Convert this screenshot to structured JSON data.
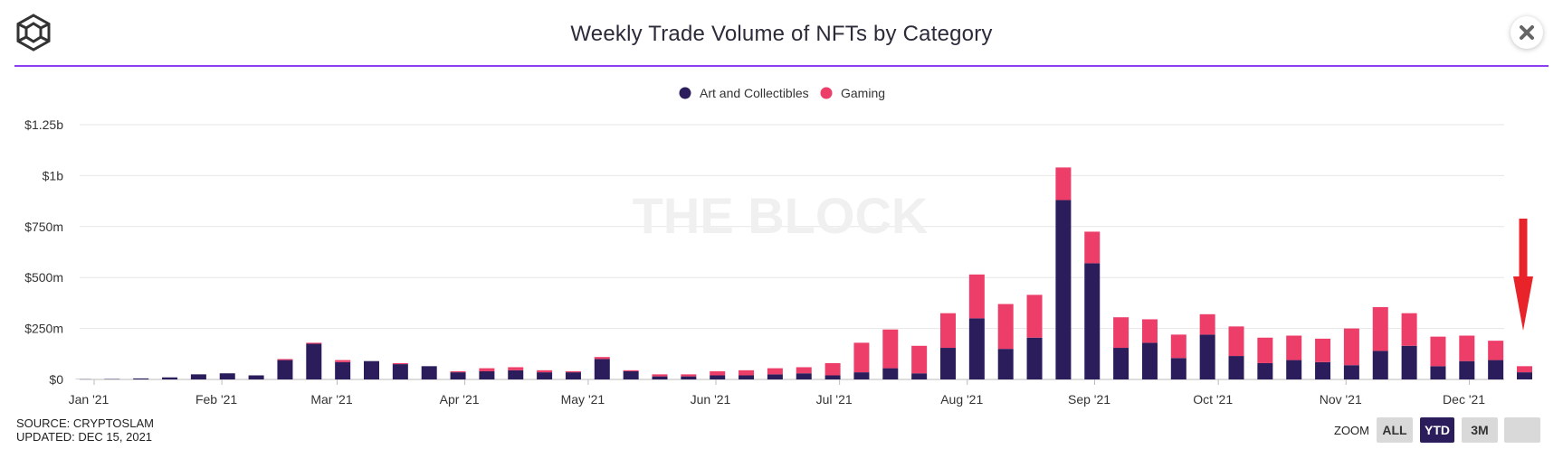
{
  "header": {
    "title": "Weekly Trade Volume of NFTs by Category",
    "logo_icon": "cube-logo-icon",
    "close_icon": "close-icon",
    "accent_color": "#8a3ff0"
  },
  "watermark": "THE BLOCK",
  "footer": {
    "source": "SOURCE: CRYPTOSLAM",
    "updated": "UPDATED: DEC 15, 2021"
  },
  "zoom": {
    "label": "ZOOM",
    "buttons": [
      "ALL",
      "YTD",
      "3M",
      ""
    ],
    "selected": "YTD"
  },
  "annotation": {
    "arrow_color": "#e8232a",
    "points_to": "last week"
  },
  "chart_data": {
    "type": "bar",
    "stacked": true,
    "legend_position": "top-center",
    "ylim": [
      0,
      1250
    ],
    "y_unit": "millions USD",
    "y_ticks": [
      {
        "value": 0,
        "label": "$0"
      },
      {
        "value": 250,
        "label": "$250m"
      },
      {
        "value": 500,
        "label": "$500m"
      },
      {
        "value": 750,
        "label": "$750m"
      },
      {
        "value": 1000,
        "label": "$1b"
      },
      {
        "value": 1250,
        "label": "$1.25b"
      }
    ],
    "x_ticks": [
      {
        "index": 0,
        "label": "Jan '21"
      },
      {
        "index": 4.43,
        "label": "Feb '21"
      },
      {
        "index": 8.43,
        "label": "Mar '21"
      },
      {
        "index": 12.86,
        "label": "Apr '21"
      },
      {
        "index": 17.14,
        "label": "May '21"
      },
      {
        "index": 21.57,
        "label": "Jun '21"
      },
      {
        "index": 25.86,
        "label": "Jul '21"
      },
      {
        "index": 30.29,
        "label": "Aug '21"
      },
      {
        "index": 34.71,
        "label": "Sep '21"
      },
      {
        "index": 39.0,
        "label": "Oct '21"
      },
      {
        "index": 43.43,
        "label": "Nov '21"
      },
      {
        "index": 47.71,
        "label": "Dec '21"
      }
    ],
    "grid": true,
    "series": [
      {
        "name": "Art and Collectibles",
        "color": "#2b1d5c",
        "values": [
          1,
          2,
          5,
          10,
          25,
          30,
          20,
          95,
          175,
          85,
          90,
          75,
          65,
          35,
          40,
          45,
          35,
          35,
          100,
          40,
          15,
          15,
          20,
          20,
          25,
          30,
          20,
          35,
          55,
          30,
          155,
          300,
          150,
          205,
          880,
          570,
          155,
          180,
          105,
          220,
          115,
          80,
          95,
          85,
          70,
          140,
          165,
          65,
          90,
          95,
          35
        ]
      },
      {
        "name": "Gaming",
        "color": "#ed3e69",
        "values": [
          0,
          0,
          0,
          0,
          0,
          0,
          0,
          5,
          5,
          10,
          0,
          5,
          0,
          5,
          15,
          15,
          10,
          5,
          10,
          5,
          10,
          10,
          20,
          25,
          30,
          30,
          60,
          145,
          190,
          135,
          170,
          215,
          220,
          210,
          160,
          155,
          150,
          115,
          115,
          100,
          145,
          125,
          120,
          115,
          180,
          215,
          160,
          145,
          125,
          95,
          30
        ]
      }
    ]
  }
}
